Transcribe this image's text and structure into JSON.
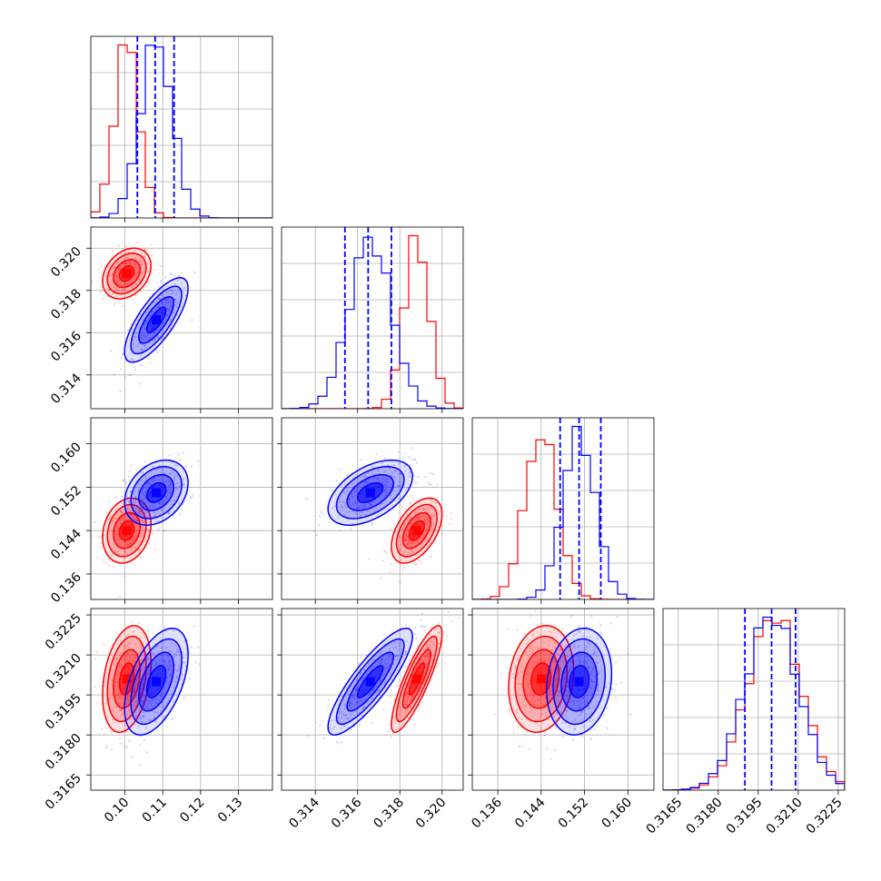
{
  "figure": {
    "type": "corner-plot"
  },
  "colors": {
    "red": "#ff0000",
    "blue": "#0000ff"
  },
  "chart_data": {
    "type": "corner",
    "parameters": [
      {
        "range": [
          0.091,
          0.139
        ],
        "ticks": [
          0.1,
          0.11,
          0.12,
          0.13
        ],
        "tick_labels": [
          "0.10",
          "0.11",
          "0.12",
          "0.13"
        ]
      },
      {
        "range": [
          0.3124,
          0.321
        ],
        "ticks": [
          0.314,
          0.316,
          0.318,
          0.32
        ],
        "tick_labels": [
          "0.314",
          "0.316",
          "0.318",
          "0.320"
        ]
      },
      {
        "range": [
          0.1313,
          0.1648
        ],
        "ticks": [
          0.136,
          0.144,
          0.152,
          0.16
        ],
        "tick_labels": [
          "0.136",
          "0.144",
          "0.152",
          "0.160"
        ]
      },
      {
        "range": [
          0.31593,
          0.32274
        ],
        "ticks": [
          0.3165,
          0.318,
          0.3195,
          0.321,
          0.3225
        ],
        "tick_labels": [
          "0.3165",
          "0.3180",
          "0.3195",
          "0.3210",
          "0.3225"
        ]
      }
    ],
    "series": [
      {
        "name": "",
        "color": "#ff0000",
        "mean": [
          0.1005,
          0.3188,
          0.144,
          0.3201
        ],
        "sd": [
          0.0032,
          0.0006,
          0.003,
          0.001
        ],
        "corr": {
          "0-1": 0.3,
          "0-2": 0.2,
          "0-3": 0.3,
          "1-2": 0.5,
          "1-3": 0.85,
          "2-3": 0.15
        }
      },
      {
        "name": "",
        "color": "#0000ff",
        "mean": [
          0.1083,
          0.3166,
          0.151,
          0.32
        ],
        "sd": [
          0.0042,
          0.001,
          0.003,
          0.001
        ],
        "corr": {
          "0-1": 0.75,
          "0-2": 0.3,
          "0-3": 0.5,
          "1-2": 0.5,
          "1-3": 0.85,
          "2-3": 0.15
        }
      }
    ],
    "quantiles": [
      [
        0.1033,
        0.108,
        0.113
      ],
      [
        0.3154,
        0.3165,
        0.3176
      ],
      [
        0.1475,
        0.151,
        0.155
      ],
      [
        0.319,
        0.32,
        0.3209
      ]
    ],
    "quantile_color": "#0000ff",
    "contour_levels_sigma": [
      0.6,
      1.1,
      1.6,
      2.0
    ],
    "grid": true
  }
}
